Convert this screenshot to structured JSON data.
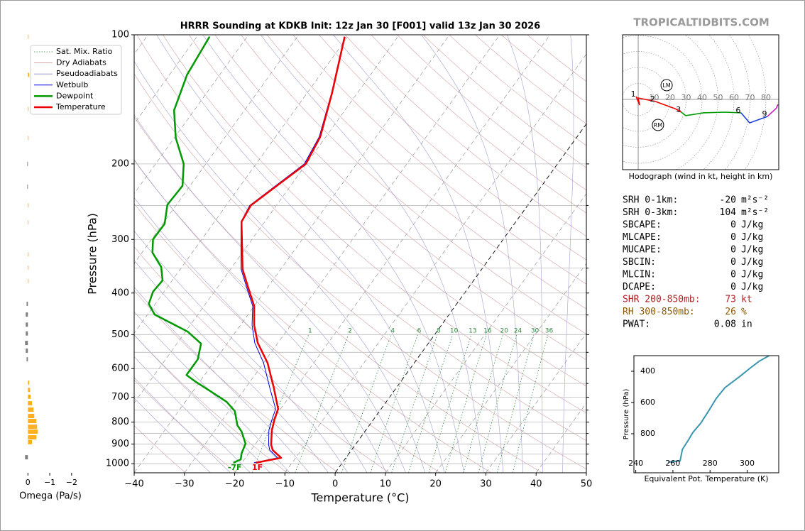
{
  "site": "TROPICALTIDBITS.COM",
  "chart_data": [
    {
      "type": "skewt",
      "title": "HRRR Sounding at KDKB Init: 12z Jan 30 [F001] valid 13z Jan 30 2026",
      "x_label": "Temperature (°C)",
      "y_label": "Pressure (hPa)",
      "xlim": [
        -40,
        50
      ],
      "xticks": [
        {
          "value": -40,
          "label": "−40"
        },
        {
          "value": -30,
          "label": "−30"
        },
        {
          "value": -20,
          "label": "−20"
        },
        {
          "value": -10,
          "label": "−10"
        },
        0,
        10,
        20,
        30,
        40,
        50
      ],
      "ylim": [
        1050,
        100
      ],
      "ylog": true,
      "yticks": [
        100,
        200,
        300,
        400,
        500,
        600,
        700,
        800,
        900,
        1000
      ],
      "y_minor_ticks": [
        250,
        350,
        450,
        550,
        650,
        750,
        850,
        950
      ],
      "grid": true,
      "legend": "upper left",
      "reference_lines": [
        {
          "name": "Sat. Mix. Ratio",
          "color": "#2e8b3e"
        },
        {
          "name": "Dry Adiabats",
          "color": "#c98a8a"
        },
        {
          "name": "Pseudoadiabats",
          "color": "#8a8ac9"
        }
      ],
      "mixing_ratios": [
        1,
        2,
        4,
        6,
        8,
        10,
        13,
        16,
        20,
        24,
        30,
        36
      ],
      "series": [
        {
          "name": "Wetbulb",
          "color": "#0000dd",
          "linewidth": 1,
          "pressure": [
            995,
            969,
            929,
            902,
            835,
            789,
            745,
            665,
            582,
            523,
            475,
            429,
            394,
            352,
            273,
            250,
            200,
            173,
            137,
            101
          ],
          "values": [
            -17.6,
            -13.6,
            -16.3,
            -17.3,
            -19.3,
            -20.2,
            -21.0,
            -25.2,
            -30.0,
            -34.6,
            -37.7,
            -40.3,
            -43.6,
            -47.9,
            -54.7,
            -55.3,
            -50.4,
            -51.3,
            -55.1,
            -60.7
          ]
        },
        {
          "name": "Dewpoint",
          "color": "#009900",
          "linewidth": 2.5,
          "surface_label": "-7F",
          "pressure": [
            995,
            977,
            947,
            898,
            842,
            813,
            754,
            717,
            677,
            645,
            621,
            571,
            525,
            492,
            449,
            424,
            397,
            374,
            348,
            322,
            300,
            276,
            249,
            225,
            200,
            174,
            150,
            124,
            101
          ],
          "values": [
            -21.7,
            -20.7,
            -21.4,
            -22.0,
            -24.5,
            -26.3,
            -28.8,
            -31.8,
            -36.6,
            -40.7,
            -43.6,
            -43.6,
            -45.2,
            -49.6,
            -58.6,
            -61.3,
            -62.2,
            -61.9,
            -64.1,
            -67.9,
            -69.7,
            -69.6,
            -71.8,
            -71.5,
            -74.4,
            -79.7,
            -84.0,
            -86.5,
            -87.5
          ]
        },
        {
          "name": "Temperature",
          "color": "#ee0000",
          "linewidth": 2.5,
          "surface_label": "1F",
          "pressure": [
            995,
            969,
            929,
            902,
            835,
            789,
            745,
            665,
            582,
            523,
            475,
            429,
            394,
            352,
            273,
            250,
            200,
            173,
            137,
            101
          ],
          "values": [
            -17.2,
            -12.9,
            -15.7,
            -16.8,
            -18.7,
            -19.7,
            -20.5,
            -24.4,
            -29.2,
            -34.0,
            -37.3,
            -40.0,
            -43.3,
            -47.6,
            -54.6,
            -55.1,
            -50.1,
            -51.1,
            -55.0,
            -60.6
          ]
        }
      ]
    },
    {
      "type": "bar",
      "orientation": "horizontal",
      "x_label": "Omega (Pa/s)",
      "xlim": [
        0.4,
        -2.2
      ],
      "xticks": [
        0,
        {
          "value": -1,
          "label": "−1"
        },
        {
          "value": -2,
          "label": "−2"
        }
      ],
      "ylim": [
        1050,
        100
      ],
      "ylog": true,
      "colors": {
        "positive": "#808080",
        "negative": "#ffb020"
      },
      "pressure": [
        966,
        891,
        868,
        842,
        820,
        795,
        774,
        748,
        723,
        698,
        673,
        647,
        571,
        545,
        523,
        497,
        474,
        449,
        424,
        375,
        349,
        325,
        274,
        250,
        226,
        200,
        174,
        149,
        124,
        101
      ],
      "values": [
        0.13,
        -0.19,
        -0.39,
        -0.45,
        -0.42,
        -0.39,
        -0.29,
        -0.26,
        -0.19,
        -0.13,
        -0.1,
        -0.06,
        0.06,
        0.1,
        0.13,
        0.1,
        0.1,
        0.1,
        0.06,
        -0.03,
        -0.03,
        -0.03,
        -0.02,
        -0.03,
        0.03,
        0.03,
        -0.03,
        -0.03,
        -0.06,
        -0.03
      ]
    },
    {
      "type": "hodograph",
      "caption": "Hodograph (wind in kt, height in km)",
      "rings": [
        10,
        20,
        30,
        40,
        50,
        60,
        70,
        80
      ],
      "segments": [
        {
          "color": "#ee0000",
          "u": [
            -1.3,
            0.9,
            0,
            10.7,
            23.1,
            27.0
          ],
          "v": [
            1.8,
            -3.6,
            0.9,
            -1.3,
            -5.8,
            -8.0
          ],
          "heights": [
            1,
            null,
            null,
            2,
            null,
            3
          ]
        },
        {
          "color": "#009900",
          "u": [
            27.0,
            29.8,
            40.9,
            54.2,
            64.4
          ],
          "v": [
            -8.0,
            -10.2,
            -8.4,
            -8.0,
            -8.4
          ],
          "heights": [
            null,
            null,
            null,
            null,
            6
          ]
        },
        {
          "color": "#1a3fd6",
          "u": [
            64.4,
            69.8,
            80.9
          ],
          "v": [
            -8.4,
            -14.7,
            -10.7
          ],
          "heights": [
            null,
            null,
            9
          ]
        },
        {
          "color": "#c020c0",
          "u": [
            80.9,
            86.5,
            87.5
          ],
          "v": [
            -10.7,
            -5.5,
            -3.1
          ]
        }
      ],
      "storm_motion": [
        {
          "label": "LM",
          "u": 17.8,
          "v": 8.9
        },
        {
          "label": "RM",
          "u": 12.4,
          "v": -16.0
        }
      ]
    },
    {
      "type": "line",
      "x_label": "Equivalent Pot. Temperature (K)",
      "y_label": "Pressure (hPa)",
      "xlim": [
        239,
        317
      ],
      "xticks": [
        240,
        260,
        280,
        300
      ],
      "ylim": [
        1050,
        300
      ],
      "yticks": [
        400,
        600,
        800
      ],
      "series": [
        {
          "color": "#3a96b0",
          "pressure": [
            982,
            973,
            900,
            845,
            791,
            732,
            655,
            573,
            505,
            436,
            382,
            336,
            300
          ],
          "values": [
            257.4,
            263.9,
            265.1,
            268.1,
            270.8,
            275.0,
            279.2,
            283.4,
            288.0,
            295.7,
            301.4,
            306.4,
            311.8
          ]
        }
      ]
    }
  ],
  "parameters": [
    {
      "label": "SRH 0-1km:",
      "value": -20,
      "unit": "m²s⁻²"
    },
    {
      "label": "SRH 0-3km:",
      "value": 104,
      "unit": "m²s⁻²"
    },
    {
      "label": "SBCAPE:",
      "value": 0,
      "unit": "J/kg"
    },
    {
      "label": "MLCAPE:",
      "value": 0,
      "unit": "J/kg"
    },
    {
      "label": "MUCAPE:",
      "value": 0,
      "unit": "J/kg"
    },
    {
      "label": "SBCIN:",
      "value": 0,
      "unit": "J/kg"
    },
    {
      "label": "MLCIN:",
      "value": 0,
      "unit": "J/kg"
    },
    {
      "label": "DCAPE:",
      "value": 0,
      "unit": "J/kg"
    },
    {
      "label": "SHR 200-850mb:",
      "value": 73,
      "unit": "kt",
      "color": "#b22222"
    },
    {
      "label": "RH 300-850mb:",
      "value": 26,
      "unit": "%",
      "color": "#8b5a00"
    },
    {
      "label": "PWAT:",
      "value": 0.08,
      "unit": "in"
    }
  ]
}
